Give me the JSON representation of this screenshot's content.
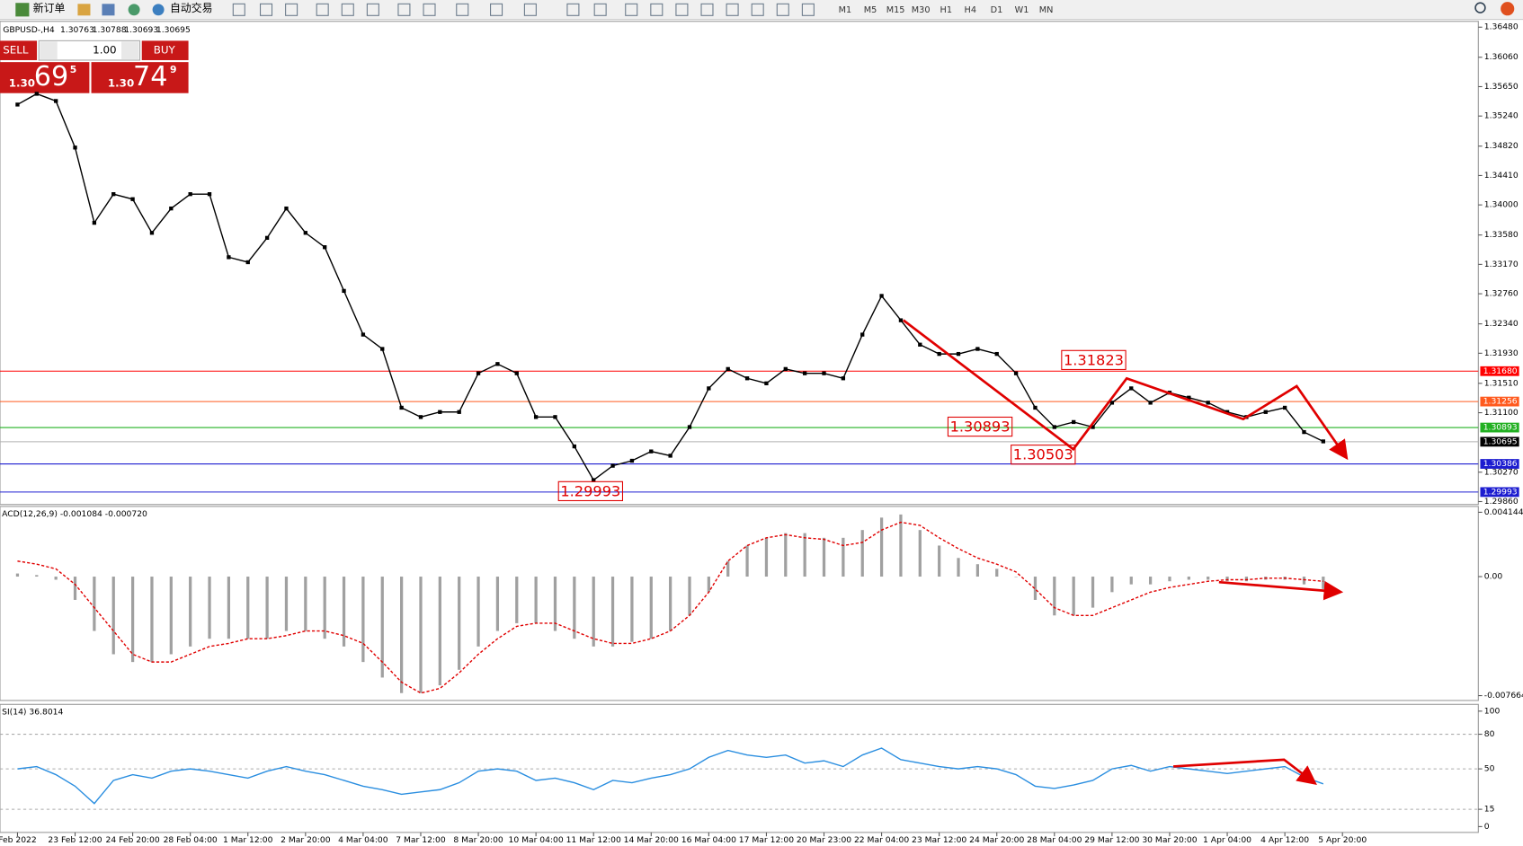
{
  "toolbar": {
    "new_order": "新订单",
    "auto_trading": "自动交易",
    "timeframes": [
      "M1",
      "M5",
      "M15",
      "M30",
      "H1",
      "H4",
      "D1",
      "W1",
      "MN"
    ]
  },
  "chart_header": {
    "symbol": "GBPUSD-,H4",
    "ohlc": [
      1.30763,
      1.30788,
      1.30693,
      1.30695
    ]
  },
  "trade_panel": {
    "sell": "SELL",
    "buy": "BUY",
    "lots": "1.00",
    "bid": {
      "big": "1.30",
      "pips": "69",
      "point": "5"
    },
    "ask": {
      "big": "1.30",
      "pips": "74",
      "point": "9"
    }
  },
  "chart_data": [
    {
      "type": "line",
      "color": "#000000",
      "categories": [
        "Feb 2022",
        null,
        null,
        "23 Feb 12:00",
        null,
        null,
        "24 Feb 20:00",
        null,
        null,
        "28 Feb 04:00",
        null,
        null,
        "1 Mar 12:00",
        null,
        null,
        "2 Mar 20:00",
        null,
        null,
        "4 Mar 04:00",
        null,
        null,
        "7 Mar 12:00",
        null,
        null,
        "8 Mar 20:00",
        null,
        null,
        "10 Mar 04:00",
        null,
        null,
        "11 Mar 12:00",
        null,
        null,
        "14 Mar 20:00",
        null,
        null,
        "16 Mar 04:00",
        null,
        null,
        "17 Mar 12:00",
        null,
        null,
        "20 Mar 23:00",
        null,
        null,
        "22 Mar 04:00",
        null,
        null,
        "23 Mar 12:00",
        null,
        null,
        "24 Mar 20:00",
        null,
        null,
        "28 Mar 04:00",
        null,
        null,
        "29 Mar 12:00",
        null,
        null,
        "30 Mar 20:00",
        null,
        null,
        "1 Apr 04:00",
        null,
        null,
        "4 Apr 12:00",
        null,
        null,
        "5 Apr 20:00"
      ],
      "values": [
        1.354,
        1.3555,
        1.3545,
        1.348,
        1.3375,
        1.3415,
        1.3408,
        1.3361,
        1.3395,
        1.3415,
        1.3415,
        1.3327,
        1.332,
        1.3354,
        1.3395,
        1.3361,
        1.3341,
        1.328,
        1.3219,
        1.3199,
        1.3117,
        1.3104,
        1.3111,
        1.3111,
        1.3165,
        1.3178,
        1.3165,
        1.3104,
        1.3104,
        1.3063,
        1.3016,
        1.3036,
        1.3043,
        1.3056,
        1.305,
        1.309,
        1.3144,
        1.3171,
        1.3158,
        1.3151,
        1.3171,
        1.3165,
        1.3165,
        1.3158,
        1.3219,
        1.3273,
        1.3239,
        1.3205,
        1.3192,
        1.3192,
        1.3199,
        1.3192,
        1.3165,
        1.3117,
        1.309,
        1.3097,
        1.309,
        1.3124,
        1.3144,
        1.3124,
        1.3138,
        1.3131,
        1.3124,
        1.3111,
        1.3104,
        1.3111,
        1.3117,
        1.3083,
        1.307,
        null
      ],
      "ylim": [
        1.2986,
        1.3648
      ],
      "yticks": [
        {
          "value": 1.3648,
          "label": "1.36480"
        },
        {
          "value": 1.3606,
          "label": "1.36060"
        },
        {
          "value": 1.3565,
          "label": "1.35650"
        },
        {
          "value": 1.3524,
          "label": "1.35240"
        },
        {
          "value": 1.3482,
          "label": "1.34820"
        },
        {
          "value": 1.3441,
          "label": "1.34410"
        },
        {
          "value": 1.34,
          "label": "1.34000"
        },
        {
          "value": 1.3358,
          "label": "1.33580"
        },
        {
          "value": 1.3317,
          "label": "1.33170"
        },
        {
          "value": 1.3276,
          "label": "1.32760"
        },
        {
          "value": 1.3234,
          "label": "1.32340"
        },
        {
          "value": 1.3193,
          "label": "1.31930"
        },
        {
          "value": 1.3151,
          "label": "1.31510"
        },
        {
          "value": 1.311,
          "label": "1.31100"
        },
        {
          "value": 1.3027,
          "label": "1.30270"
        },
        {
          "value": 1.2986,
          "label": "1.29860"
        }
      ],
      "levels": [
        {
          "value": 1.3168,
          "label": "1.31680",
          "color": "#ff0000"
        },
        {
          "value": 1.31256,
          "label": "1.31256",
          "color": "#ff5a1e"
        },
        {
          "value": 1.30893,
          "label": "1.30893",
          "color": "#22b022"
        },
        {
          "value": 1.30695,
          "label": "1.30695",
          "color": "#000000"
        },
        {
          "value": 1.30386,
          "label": "1.30386",
          "color": "#1c1cd0"
        },
        {
          "value": 1.29993,
          "label": "1.29993",
          "color": "#1c1cd0"
        }
      ],
      "annotations": [
        1.31823,
        1.30893,
        1.30503,
        1.29993
      ]
    },
    {
      "type": "macd",
      "title": "ACD(12,26,9) -0.001084 -0.000720",
      "color": "#a0a0a0",
      "signal_color": "#e00000",
      "values": [
        0.0002,
        0.0001,
        -0.0002,
        -0.0015,
        -0.0035,
        -0.005,
        -0.0055,
        -0.0055,
        -0.005,
        -0.0045,
        -0.004,
        -0.004,
        -0.004,
        -0.004,
        -0.0035,
        -0.0035,
        -0.004,
        -0.0045,
        -0.0055,
        -0.0065,
        -0.0075,
        -0.0075,
        -0.007,
        -0.006,
        -0.0045,
        -0.0035,
        -0.003,
        -0.003,
        -0.0035,
        -0.004,
        -0.0045,
        -0.0045,
        -0.0042,
        -0.004,
        -0.0035,
        -0.0025,
        -0.001,
        0.001,
        0.002,
        0.0025,
        0.0028,
        0.0028,
        0.0025,
        0.0025,
        0.003,
        0.0038,
        0.004,
        0.003,
        0.002,
        0.0012,
        0.0008,
        0.0005,
        0.0,
        -0.0015,
        -0.0025,
        -0.0025,
        -0.002,
        -0.001,
        -0.0005,
        -0.0005,
        -0.0003,
        -0.0002,
        -0.0002,
        -0.0003,
        -0.0003,
        -0.0002,
        -0.0002,
        -0.0005,
        -0.0008,
        null
      ],
      "signal_values": [
        0.001,
        0.0008,
        0.0005,
        -0.0005,
        -0.002,
        -0.0035,
        -0.005,
        -0.0055,
        -0.0055,
        -0.005,
        -0.0045,
        -0.0043,
        -0.004,
        -0.004,
        -0.0038,
        -0.0035,
        -0.0035,
        -0.0038,
        -0.0043,
        -0.0055,
        -0.0068,
        -0.0075,
        -0.0072,
        -0.0062,
        -0.005,
        -0.004,
        -0.0032,
        -0.003,
        -0.003,
        -0.0035,
        -0.004,
        -0.0043,
        -0.0043,
        -0.004,
        -0.0035,
        -0.0025,
        -0.001,
        0.001,
        0.002,
        0.0025,
        0.0027,
        0.0025,
        0.0024,
        0.002,
        0.0022,
        0.003,
        0.0035,
        0.0033,
        0.0025,
        0.0018,
        0.0012,
        0.0008,
        0.0003,
        -0.0008,
        -0.002,
        -0.0025,
        -0.0025,
        -0.002,
        -0.0015,
        -0.001,
        -0.0007,
        -0.0005,
        -0.0003,
        -0.0002,
        -0.0002,
        -0.0001,
        -0.0001,
        -0.0002,
        -0.0003,
        null
      ],
      "ylim": [
        -0.007664,
        0.004144
      ],
      "yticks": [
        0.004144,
        {
          "value": 0,
          "label": "0.00"
        },
        -0.007664
      ]
    },
    {
      "type": "line",
      "title": "SI(14) 36.8014",
      "color": "#2a8ee0",
      "values": [
        50,
        52,
        45,
        35,
        20,
        40,
        45,
        42,
        48,
        50,
        48,
        45,
        42,
        48,
        52,
        48,
        45,
        40,
        35,
        32,
        28,
        30,
        32,
        38,
        48,
        50,
        48,
        40,
        42,
        38,
        32,
        40,
        38,
        42,
        45,
        50,
        60,
        66,
        62,
        60,
        62,
        55,
        57,
        52,
        62,
        68,
        58,
        55,
        52,
        50,
        52,
        50,
        45,
        35,
        33,
        36,
        40,
        50,
        53,
        48,
        52,
        50,
        48,
        46,
        48,
        50,
        52,
        43,
        37,
        null
      ],
      "ylim": [
        0,
        100
      ],
      "yticks": [
        100,
        80,
        50,
        15,
        0
      ],
      "levels": [
        80,
        50,
        15
      ]
    }
  ]
}
